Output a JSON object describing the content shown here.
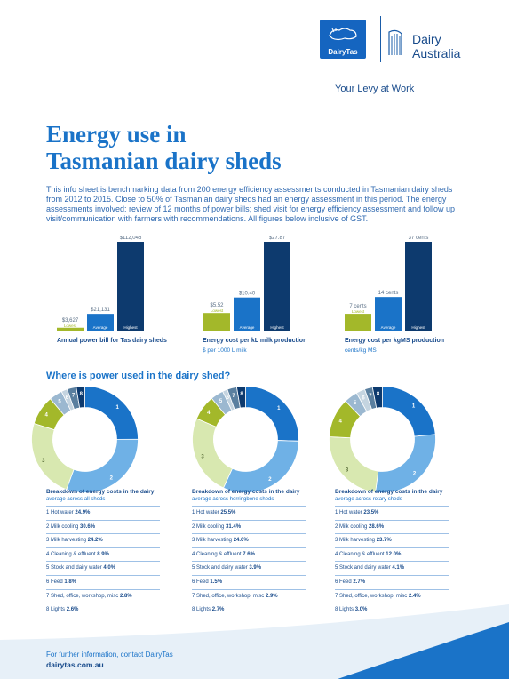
{
  "header": {
    "dairytas_logo_text": "DairyTas",
    "dairy_australia_line1": "Dairy",
    "dairy_australia_line2": "Australia",
    "tagline": "Your Levy at Work"
  },
  "title": {
    "line1": "Energy use in",
    "line2": "Tasmanian dairy sheds"
  },
  "intro": "This info sheet is benchmarking data from 200 energy efficiency assessments conducted in Tasmanian dairy sheds from 2012 to 2015. Close to 50% of Tasmanian dairy sheds had an energy assessment in this period. The energy assessments involved: review of 12 months of power bills; shed visit for energy efficiency assessment and follow up visit/communication with farmers with recommendations. All figures below inclusive of GST.",
  "colors": {
    "brand_blue": "#1a73c8",
    "navy": "#1a4c8c",
    "lowest": "#a3b82a",
    "average": "#1a73c8",
    "highest": "#0d3a6e"
  },
  "chart_data": [
    {
      "type": "bar",
      "title": "Annual power bill for Tas dairy sheds",
      "subtitle": "",
      "categories": [
        "Lowest",
        "Average",
        "Highest"
      ],
      "values": [
        3627,
        21131,
        112046
      ],
      "value_labels": [
        "$3,627",
        "$21,131",
        "$112,046"
      ],
      "colors": [
        "#a3b82a",
        "#1a73c8",
        "#0d3a6e"
      ],
      "ylim": [
        0,
        112046
      ]
    },
    {
      "type": "bar",
      "title": "Energy cost per kL milk production",
      "subtitle": "$ per 1000 L milk",
      "categories": [
        "Lowest",
        "Average",
        "Highest"
      ],
      "values": [
        5.52,
        10.4,
        27.87
      ],
      "value_labels": [
        "$5.52",
        "$10.40",
        "$27.87"
      ],
      "colors": [
        "#a3b82a",
        "#1a73c8",
        "#0d3a6e"
      ],
      "ylim": [
        0,
        27.87
      ]
    },
    {
      "type": "bar",
      "title": "Energy cost per kgMS production",
      "subtitle": "cents/kg MS",
      "categories": [
        "Lowest",
        "Average",
        "Highest"
      ],
      "values": [
        7,
        14,
        37
      ],
      "value_labels": [
        "7 cents",
        "14 cents",
        "37 cents"
      ],
      "colors": [
        "#a3b82a",
        "#1a73c8",
        "#0d3a6e"
      ],
      "ylim": [
        0,
        37
      ]
    },
    {
      "type": "pie",
      "title": "Breakdown of energy costs in the dairy",
      "subtitle": "average across all sheds",
      "slice_labels": [
        "1",
        "2",
        "3",
        "4",
        "5",
        "6",
        "7",
        "8"
      ],
      "categories": [
        "Hot water",
        "Milk cooling",
        "Milk harvesting",
        "Cleaning & effluent",
        "Stock and dairy water",
        "Feed",
        "Shed, office, workshop, misc",
        "Lights"
      ],
      "values": [
        24.9,
        30.6,
        24.2,
        8.9,
        4.0,
        1.8,
        2.8,
        2.6
      ],
      "value_labels": [
        "24.9%",
        "30.6%",
        "24.2%",
        "8.9%",
        "4.0%",
        "1.8%",
        "2.8%",
        "2.6%"
      ]
    },
    {
      "type": "pie",
      "title": "Breakdown of energy costs in the dairy",
      "subtitle": "average across herringbone sheds",
      "slice_labels": [
        "1",
        "2",
        "3",
        "4",
        "5",
        "6",
        "7",
        "8"
      ],
      "categories": [
        "Hot water",
        "Milk cooling",
        "Milk harvesting",
        "Cleaning & effluent",
        "Stock and dairy water",
        "Feed",
        "Shed, office, workshop, misc",
        "Lights"
      ],
      "values": [
        25.5,
        31.4,
        24.6,
        7.6,
        3.9,
        1.5,
        2.9,
        2.7
      ],
      "value_labels": [
        "25.5%",
        "31.4%",
        "24.6%",
        "7.6%",
        "3.9%",
        "1.5%",
        "2.9%",
        "2.7%"
      ]
    },
    {
      "type": "pie",
      "title": "Breakdown of energy costs in the dairy",
      "subtitle": "average across rotary sheds",
      "slice_labels": [
        "1",
        "2",
        "3",
        "4",
        "5",
        "6",
        "7",
        "8"
      ],
      "categories": [
        "Hot water",
        "Milk cooling",
        "Milk harvesting",
        "Cleaning & effluent",
        "Stock and dairy water",
        "Feed",
        "Shed, office, workshop, misc",
        "Lights"
      ],
      "values": [
        23.5,
        28.6,
        23.7,
        12.0,
        4.1,
        2.7,
        2.4,
        3.0
      ],
      "value_labels": [
        "23.5%",
        "28.6%",
        "23.7%",
        "12.0%",
        "4.1%",
        "2.7%",
        "2.4%",
        "3.0%"
      ]
    }
  ],
  "pie_colors": [
    "#1a73c8",
    "#6fb1e6",
    "#d8e8b0",
    "#a3b82a",
    "#9bb8d0",
    "#c4d4e0",
    "#5a7f9f",
    "#0d3a6e"
  ],
  "section_title": "Where is power used in the dairy shed?",
  "footer": {
    "line1": "For further information, contact DairyTas",
    "line2": "dairytas.com.au"
  }
}
